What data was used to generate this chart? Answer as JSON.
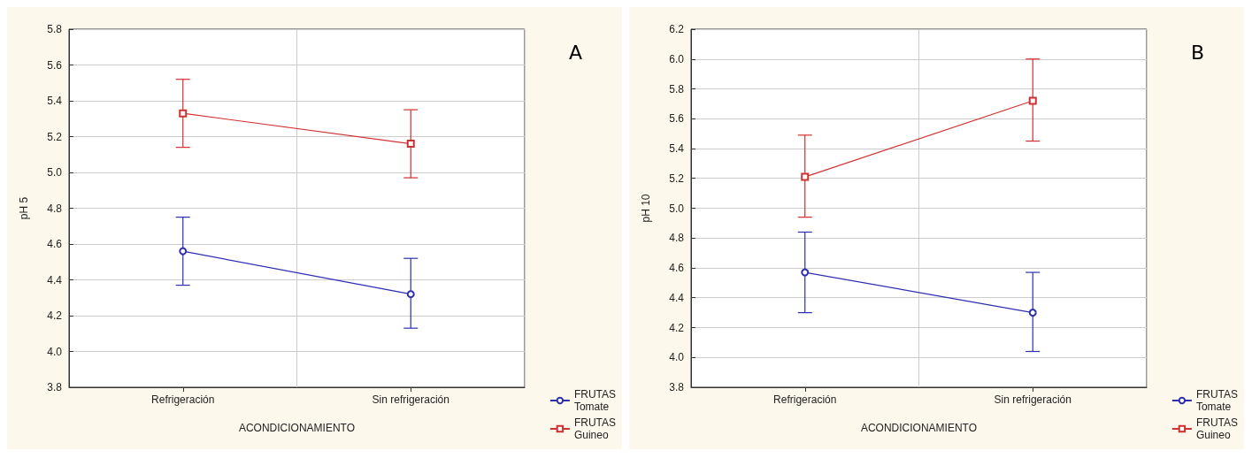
{
  "chart_data": [
    {
      "type": "line",
      "xlabel": "ACONDICIONAMIENTO",
      "ylabel": "pH 5",
      "categories": [
        "Refrigeración",
        "Sin refrigeración"
      ],
      "ylim": [
        3.8,
        5.8
      ],
      "yticks": [
        3.8,
        {
          "value": 4,
          "label": "4.0"
        },
        4.2,
        4.4,
        4.6,
        4.8,
        {
          "value": 5,
          "label": "5.0"
        },
        5.2,
        5.4,
        5.6,
        5.8
      ],
      "grid": true,
      "legend": "bottom right",
      "annotations": [
        "A"
      ],
      "series": [
        {
          "name": "FRUTAS\nTomate",
          "color": "#2e2eb0",
          "marker": "circle",
          "values": [
            4.56,
            4.32
          ],
          "errors": [
            [
              4.37,
              4.75
            ],
            [
              4.13,
              4.52
            ]
          ]
        },
        {
          "name": "FRUTAS\nGuineo",
          "color": "#d03030",
          "marker": "square",
          "values": [
            5.33,
            5.16
          ],
          "errors": [
            [
              5.14,
              5.52
            ],
            [
              4.97,
              5.35
            ]
          ]
        }
      ]
    },
    {
      "type": "line",
      "xlabel": "ACONDICIONAMIENTO",
      "ylabel": "pH 10",
      "categories": [
        "Refrigeración",
        "Sin refrigeración"
      ],
      "ylim": [
        3.8,
        6.2
      ],
      "yticks": [
        3.8,
        {
          "value": 4,
          "label": "4.0"
        },
        4.2,
        4.4,
        4.6,
        4.8,
        {
          "value": 5,
          "label": "5.0"
        },
        5.2,
        5.4,
        5.6,
        5.8,
        {
          "value": 6,
          "label": "6.0"
        },
        6.2
      ],
      "grid": true,
      "legend": "bottom right",
      "annotations": [
        "B"
      ],
      "series": [
        {
          "name": "FRUTAS\nTomate",
          "color": "#2e2eb0",
          "marker": "circle",
          "values": [
            4.57,
            4.3
          ],
          "errors": [
            [
              4.3,
              4.84
            ],
            [
              4.04,
              4.57
            ]
          ]
        },
        {
          "name": "FRUTAS\nGuineo",
          "color": "#d03030",
          "marker": "square",
          "values": [
            5.21,
            5.72
          ],
          "errors": [
            [
              4.94,
              5.49
            ],
            [
              5.45,
              6.0
            ]
          ]
        }
      ]
    }
  ]
}
